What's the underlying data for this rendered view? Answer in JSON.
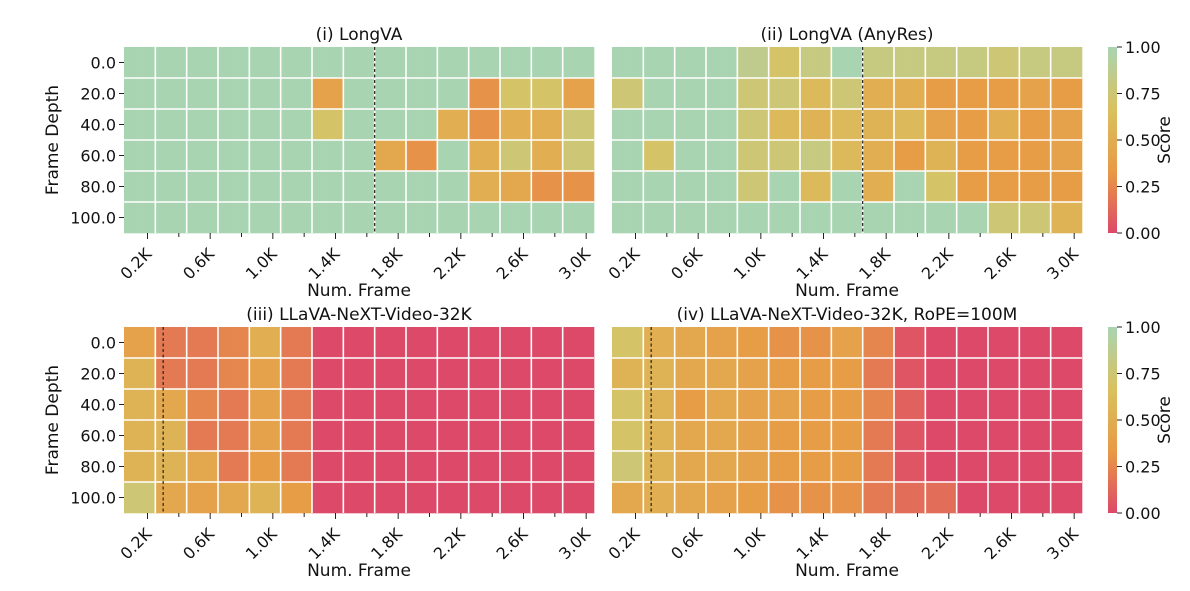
{
  "colorbar": {
    "label": "Score",
    "ticks": [
      "1.00",
      "0.75",
      "0.50",
      "0.25",
      "0.00"
    ],
    "tick_values": [
      1.0,
      0.75,
      0.5,
      0.25,
      0.0
    ],
    "colormap": [
      "#dd4968",
      "#e89a45",
      "#d9c15f",
      "#a9d4b2"
    ]
  },
  "chart_data": [
    {
      "type": "heatmap",
      "title": "(i) LongVA",
      "xlabel": "Num. Frame",
      "ylabel": "Frame Depth",
      "x_tick_labels": [
        "0.2K",
        "0.6K",
        "1.0K",
        "1.4K",
        "1.8K",
        "2.2K",
        "2.6K",
        "3.0K"
      ],
      "y_tick_labels": [
        "0.0",
        "20.0",
        "40.0",
        "60.0",
        "80.0",
        "100.0"
      ],
      "x": [
        0.1,
        0.2,
        0.3,
        0.4,
        0.5,
        0.6,
        0.7,
        0.8,
        0.9,
        1.0,
        1.1,
        1.2,
        1.3,
        1.4,
        1.5,
        1.6,
        1.7,
        1.8,
        1.9,
        2.0,
        2.1,
        2.2,
        2.3,
        2.4,
        2.5,
        2.6,
        2.7,
        2.8,
        2.9,
        3.0
      ],
      "y": [
        0,
        20,
        40,
        60,
        80,
        100
      ],
      "value_range": [
        0,
        1
      ],
      "reference_line_x": 1.65,
      "values": [
        [
          1,
          1,
          1,
          1,
          1,
          1,
          1,
          1,
          1,
          1,
          1,
          1,
          1,
          1,
          1,
          1,
          1,
          1,
          1,
          1,
          1,
          1,
          1,
          1,
          1,
          1,
          1,
          1,
          1,
          1
        ],
        [
          1,
          1,
          1,
          1,
          1,
          1,
          1,
          1,
          1,
          1,
          1,
          1,
          0.4,
          0.4,
          1,
          1,
          1,
          1,
          1,
          1,
          1,
          1,
          0.3,
          0.3,
          0.7,
          0.7,
          0.7,
          0.7,
          0.4,
          0.4
        ],
        [
          1,
          1,
          1,
          1,
          1,
          1,
          1,
          1,
          1,
          1,
          1,
          1,
          0.7,
          0.7,
          1,
          1,
          1,
          1,
          1,
          1,
          0.5,
          0.5,
          0.3,
          0.3,
          0.5,
          0.5,
          0.5,
          0.5,
          0.75,
          0.75
        ],
        [
          1,
          1,
          1,
          1,
          1,
          1,
          1,
          1,
          1,
          1,
          1,
          1,
          1,
          1,
          1,
          1,
          0.45,
          0.45,
          0.3,
          0.3,
          1,
          1,
          0.5,
          0.5,
          0.75,
          0.75,
          0.5,
          0.5,
          0.75,
          0.75
        ],
        [
          1,
          1,
          1,
          1,
          1,
          1,
          1,
          1,
          1,
          1,
          1,
          1,
          1,
          1,
          1,
          1,
          1,
          1,
          1,
          1,
          1,
          1,
          0.5,
          0.5,
          0.45,
          0.45,
          0.3,
          0.3,
          0.3,
          0.3
        ],
        [
          1,
          1,
          1,
          1,
          1,
          1,
          1,
          1,
          1,
          1,
          1,
          1,
          1,
          1,
          1,
          1,
          1,
          1,
          1,
          1,
          1,
          1,
          1,
          1,
          1,
          1,
          1,
          1,
          1,
          1
        ]
      ]
    },
    {
      "type": "heatmap",
      "title": "(ii) LongVA (AnyRes)",
      "xlabel": "Num. Frame",
      "ylabel": "",
      "x_tick_labels": [
        "0.2K",
        "0.6K",
        "1.0K",
        "1.4K",
        "1.8K",
        "2.2K",
        "2.6K",
        "3.0K"
      ],
      "y_tick_labels": [],
      "x": [
        0.1,
        0.2,
        0.3,
        0.4,
        0.5,
        0.6,
        0.7,
        0.8,
        0.9,
        1.0,
        1.1,
        1.2,
        1.3,
        1.4,
        1.5,
        1.6,
        1.7,
        1.8,
        1.9,
        2.0,
        2.1,
        2.2,
        2.3,
        2.4,
        2.5,
        2.6,
        2.7,
        2.8,
        2.9,
        3.0
      ],
      "y": [
        0,
        20,
        40,
        60,
        80,
        100
      ],
      "value_range": [
        0,
        1
      ],
      "reference_line_x": 1.65,
      "values": [
        [
          1,
          1,
          1,
          1,
          1,
          1,
          1,
          1,
          0.85,
          0.85,
          0.7,
          0.7,
          0.8,
          0.8,
          1,
          1,
          0.8,
          0.8,
          0.8,
          0.8,
          0.8,
          0.8,
          0.8,
          0.8,
          0.75,
          0.75,
          0.8,
          0.8,
          0.8,
          0.8
        ],
        [
          0.75,
          0.75,
          1,
          1,
          1,
          1,
          1,
          1,
          0.75,
          0.75,
          0.75,
          0.75,
          0.6,
          0.6,
          0.75,
          0.75,
          0.5,
          0.5,
          0.5,
          0.5,
          0.35,
          0.35,
          0.35,
          0.35,
          0.35,
          0.35,
          0.4,
          0.4,
          0.35,
          0.35
        ],
        [
          1,
          1,
          1,
          1,
          1,
          1,
          1,
          1,
          0.75,
          0.75,
          0.6,
          0.6,
          0.55,
          0.55,
          0.6,
          0.6,
          0.55,
          0.55,
          0.6,
          0.6,
          0.4,
          0.4,
          0.35,
          0.35,
          0.5,
          0.5,
          0.35,
          0.35,
          0.4,
          0.4
        ],
        [
          1,
          1,
          0.7,
          0.7,
          1,
          1,
          1,
          1,
          0.75,
          0.75,
          0.75,
          0.75,
          0.8,
          0.8,
          0.6,
          0.6,
          0.5,
          0.5,
          0.35,
          0.35,
          0.55,
          0.55,
          0.35,
          0.35,
          0.35,
          0.35,
          0.35,
          0.35,
          0.4,
          0.4
        ],
        [
          1,
          1,
          1,
          1,
          1,
          1,
          1,
          1,
          0.75,
          0.75,
          1,
          1,
          0.6,
          0.6,
          1,
          1,
          0.5,
          0.5,
          1,
          1,
          0.7,
          0.7,
          0.35,
          0.35,
          0.35,
          0.35,
          0.35,
          0.35,
          0.35,
          0.35
        ],
        [
          1,
          1,
          1,
          1,
          1,
          1,
          1,
          1,
          1,
          1,
          1,
          1,
          1,
          1,
          1,
          1,
          1,
          1,
          1,
          1,
          1,
          1,
          1,
          1,
          0.75,
          0.75,
          0.75,
          0.75,
          0.55,
          0.55
        ]
      ]
    },
    {
      "type": "heatmap",
      "title": "(iii) LLaVA-NeXT-Video-32K",
      "xlabel": "Num. Frame",
      "ylabel": "Frame Depth",
      "x_tick_labels": [
        "0.2K",
        "0.6K",
        "1.0K",
        "1.4K",
        "1.8K",
        "2.2K",
        "2.6K",
        "3.0K"
      ],
      "y_tick_labels": [
        "0.0",
        "20.0",
        "40.0",
        "60.0",
        "80.0",
        "100.0"
      ],
      "x": [
        0.1,
        0.2,
        0.3,
        0.4,
        0.5,
        0.6,
        0.7,
        0.8,
        0.9,
        1.0,
        1.1,
        1.2,
        1.3,
        1.4,
        1.5,
        1.6,
        1.7,
        1.8,
        1.9,
        2.0,
        2.1,
        2.2,
        2.3,
        2.4,
        2.5,
        2.6,
        2.7,
        2.8,
        2.9,
        3.0
      ],
      "y": [
        0,
        20,
        40,
        60,
        80,
        100
      ],
      "value_range": [
        0,
        1
      ],
      "reference_line_x": 0.3,
      "values": [
        [
          0.4,
          0.4,
          0.2,
          0.2,
          0.2,
          0.2,
          0.25,
          0.25,
          0.5,
          0.5,
          0.2,
          0.2,
          0,
          0,
          0,
          0,
          0,
          0,
          0,
          0,
          0,
          0,
          0,
          0,
          0,
          0,
          0,
          0,
          0,
          0
        ],
        [
          0.55,
          0.55,
          0.2,
          0.2,
          0.2,
          0.2,
          0.25,
          0.25,
          0.4,
          0.4,
          0.2,
          0.2,
          0,
          0,
          0,
          0,
          0,
          0,
          0,
          0,
          0,
          0,
          0,
          0,
          0,
          0,
          0,
          0,
          0,
          0
        ],
        [
          0.55,
          0.55,
          0.45,
          0.45,
          0.25,
          0.25,
          0.2,
          0.2,
          0.4,
          0.4,
          0.2,
          0.2,
          0,
          0,
          0,
          0,
          0,
          0,
          0,
          0,
          0,
          0,
          0,
          0,
          0,
          0,
          0,
          0,
          0,
          0
        ],
        [
          0.55,
          0.55,
          0.55,
          0.55,
          0.2,
          0.2,
          0.2,
          0.2,
          0.4,
          0.4,
          0.2,
          0.2,
          0,
          0,
          0,
          0,
          0,
          0,
          0,
          0,
          0,
          0,
          0,
          0,
          0,
          0,
          0,
          0,
          0,
          0
        ],
        [
          0.55,
          0.55,
          0.55,
          0.55,
          0.45,
          0.45,
          0.2,
          0.2,
          0.35,
          0.35,
          0.2,
          0.2,
          0,
          0,
          0,
          0,
          0,
          0,
          0,
          0,
          0,
          0,
          0,
          0,
          0,
          0,
          0,
          0,
          0,
          0
        ],
        [
          0.75,
          0.75,
          0.45,
          0.45,
          0.4,
          0.4,
          0.45,
          0.45,
          0.55,
          0.55,
          0.35,
          0.35,
          0,
          0,
          0,
          0,
          0,
          0,
          0,
          0,
          0,
          0,
          0,
          0,
          0,
          0,
          0,
          0,
          0,
          0
        ]
      ]
    },
    {
      "type": "heatmap",
      "title": "(iv) LLaVA-NeXT-Video-32K, RoPE=100M",
      "xlabel": "Num. Frame",
      "ylabel": "",
      "x_tick_labels": [
        "0.2K",
        "0.6K",
        "1.0K",
        "1.4K",
        "1.8K",
        "2.2K",
        "2.6K",
        "3.0K"
      ],
      "y_tick_labels": [],
      "x": [
        0.1,
        0.2,
        0.3,
        0.4,
        0.5,
        0.6,
        0.7,
        0.8,
        0.9,
        1.0,
        1.1,
        1.2,
        1.3,
        1.4,
        1.5,
        1.6,
        1.7,
        1.8,
        1.9,
        2.0,
        2.1,
        2.2,
        2.3,
        2.4,
        2.5,
        2.6,
        2.7,
        2.8,
        2.9,
        3.0
      ],
      "y": [
        0,
        20,
        40,
        60,
        80,
        100
      ],
      "value_range": [
        0,
        1
      ],
      "reference_line_x": 0.3,
      "values": [
        [
          0.7,
          0.7,
          0.5,
          0.5,
          0.45,
          0.45,
          0.4,
          0.4,
          0.35,
          0.35,
          0.3,
          0.3,
          0.3,
          0.3,
          0.4,
          0.4,
          0.25,
          0.25,
          0.05,
          0.05,
          0,
          0,
          0,
          0,
          0,
          0,
          0,
          0,
          0,
          0
        ],
        [
          0.55,
          0.55,
          0.55,
          0.55,
          0.45,
          0.45,
          0.45,
          0.45,
          0.4,
          0.4,
          0.35,
          0.35,
          0.35,
          0.35,
          0.35,
          0.35,
          0.2,
          0.2,
          0.05,
          0.05,
          0,
          0,
          0,
          0,
          0,
          0,
          0,
          0,
          0,
          0
        ],
        [
          0.7,
          0.7,
          0.55,
          0.55,
          0.35,
          0.35,
          0.45,
          0.45,
          0.4,
          0.4,
          0.4,
          0.4,
          0.35,
          0.35,
          0.35,
          0.35,
          0.25,
          0.25,
          0.1,
          0.1,
          0,
          0,
          0,
          0,
          0,
          0,
          0,
          0,
          0,
          0
        ],
        [
          0.7,
          0.7,
          0.55,
          0.55,
          0.45,
          0.45,
          0.45,
          0.45,
          0.4,
          0.4,
          0.35,
          0.35,
          0.35,
          0.35,
          0.35,
          0.35,
          0.2,
          0.2,
          0.05,
          0.05,
          0,
          0,
          0,
          0,
          0,
          0,
          0,
          0,
          0,
          0
        ],
        [
          0.75,
          0.75,
          0.55,
          0.55,
          0.45,
          0.45,
          0.45,
          0.45,
          0.4,
          0.4,
          0.35,
          0.35,
          0.35,
          0.35,
          0.35,
          0.35,
          0.2,
          0.2,
          0.05,
          0.05,
          0,
          0,
          0,
          0,
          0,
          0,
          0,
          0,
          0,
          0
        ],
        [
          0.45,
          0.45,
          0.5,
          0.5,
          0.45,
          0.45,
          0.4,
          0.4,
          0.35,
          0.35,
          0.3,
          0.3,
          0.3,
          0.3,
          0.3,
          0.3,
          0.2,
          0.2,
          0.15,
          0.15,
          0.15,
          0.15,
          0,
          0,
          0,
          0,
          0,
          0,
          0,
          0
        ]
      ]
    }
  ]
}
